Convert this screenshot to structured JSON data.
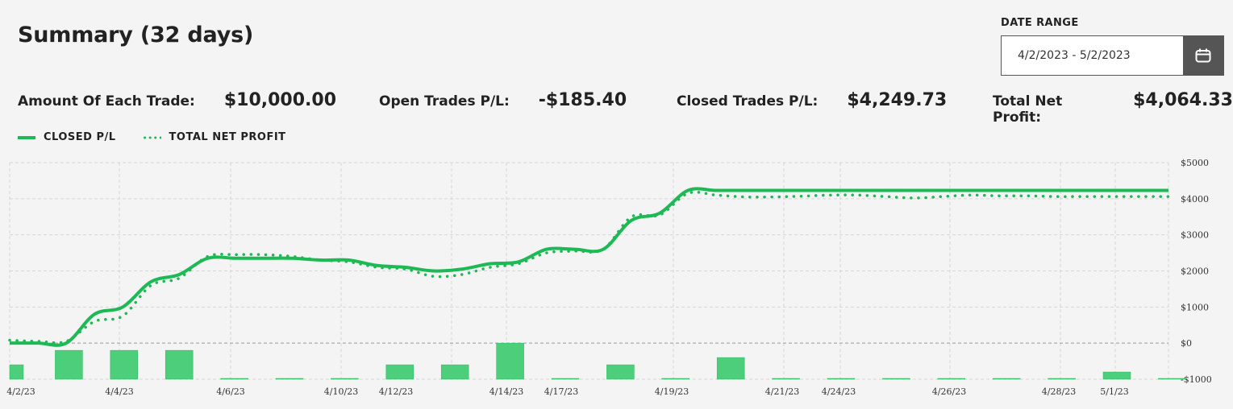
{
  "header": {
    "title": "Summary (32 days)"
  },
  "date_range": {
    "label": "DATE RANGE",
    "value": "4/2/2023 - 5/2/2023"
  },
  "stats": [
    {
      "label": "Amount Of Each Trade:",
      "value": "$10,000.00"
    },
    {
      "label": "Open Trades P/L:",
      "value": "-$185.40"
    },
    {
      "label": "Closed Trades P/L:",
      "value": "$4,249.73"
    },
    {
      "label": "Total Net Profit:",
      "value": "$4,064.33"
    }
  ],
  "colors": {
    "line": "#1db954",
    "bar": "#4cce7b",
    "bar_stroke": "#2fb862"
  },
  "chart_data": {
    "type": "line",
    "title": "",
    "legend": [
      "CLOSED P/L",
      "TOTAL NET PROFIT"
    ],
    "legend_position": "top-left",
    "grid": true,
    "ylim": [
      -1000,
      5000
    ],
    "yticks": [
      5000,
      4000,
      3000,
      2000,
      1000,
      0,
      -1000
    ],
    "ytick_labels": [
      "$5000",
      "$4000",
      "$3000",
      "$2000",
      "$1000",
      "$0",
      "-$1000"
    ],
    "xticks": [
      "4/2/23",
      "4/4/23",
      "4/6/23",
      "4/10/23",
      "4/12/23",
      "4/14/23",
      "4/17/23",
      "4/19/23",
      "4/21/23",
      "4/24/23",
      "4/26/23",
      "4/28/23",
      "5/1/23"
    ],
    "series": [
      {
        "name": "CLOSED P/L",
        "style": "solid",
        "values": [
          0,
          0,
          0,
          800,
          1000,
          1700,
          1900,
          2350,
          2350,
          2350,
          2350,
          2300,
          2300,
          2150,
          2100,
          2000,
          2050,
          2200,
          2250,
          2600,
          2600,
          2600,
          3400,
          3600,
          4230,
          4230,
          4230,
          4230,
          4230,
          4230,
          4230,
          4230,
          4230,
          4230,
          4230,
          4230,
          4230,
          4230,
          4230,
          4230,
          4230,
          4230
        ]
      },
      {
        "name": "TOTAL NET PROFIT",
        "style": "dotted",
        "values": [
          80,
          50,
          50,
          600,
          750,
          1600,
          1800,
          2400,
          2450,
          2450,
          2400,
          2300,
          2250,
          2100,
          2050,
          1850,
          1900,
          2100,
          2200,
          2500,
          2550,
          2600,
          3500,
          3550,
          4150,
          4100,
          4050,
          4050,
          4070,
          4100,
          4100,
          4060,
          4020,
          4060,
          4100,
          4080,
          4080,
          4060,
          4060,
          4060,
          4060,
          4060
        ]
      }
    ],
    "bars": [
      {
        "x": "4/2/23",
        "value": -600
      },
      {
        "x": "4/3/23",
        "value": -200
      },
      {
        "x": "4/4/23",
        "value": -200
      },
      {
        "x": "4/5/23",
        "value": -200
      },
      {
        "x": "4/6/23",
        "value": -1000
      },
      {
        "x": "4/7/23",
        "value": -1000
      },
      {
        "x": "4/10/23",
        "value": -1000
      },
      {
        "x": "4/12/23",
        "value": -600
      },
      {
        "x": "4/13/23",
        "value": -600
      },
      {
        "x": "4/14/23",
        "value": 0
      },
      {
        "x": "4/17/23",
        "value": -1000
      },
      {
        "x": "4/18/23",
        "value": -600
      },
      {
        "x": "4/19/23",
        "value": -1000
      },
      {
        "x": "4/20/23",
        "value": -400
      },
      {
        "x": "4/21/23",
        "value": -1000
      },
      {
        "x": "4/24/23",
        "value": -1000
      },
      {
        "x": "4/25/23",
        "value": -1000
      },
      {
        "x": "4/26/23",
        "value": -1000
      },
      {
        "x": "4/27/23",
        "value": -1000
      },
      {
        "x": "4/28/23",
        "value": -1000
      },
      {
        "x": "5/1/23",
        "value": -800
      },
      {
        "x": "5/2/23",
        "value": -1000
      }
    ]
  }
}
